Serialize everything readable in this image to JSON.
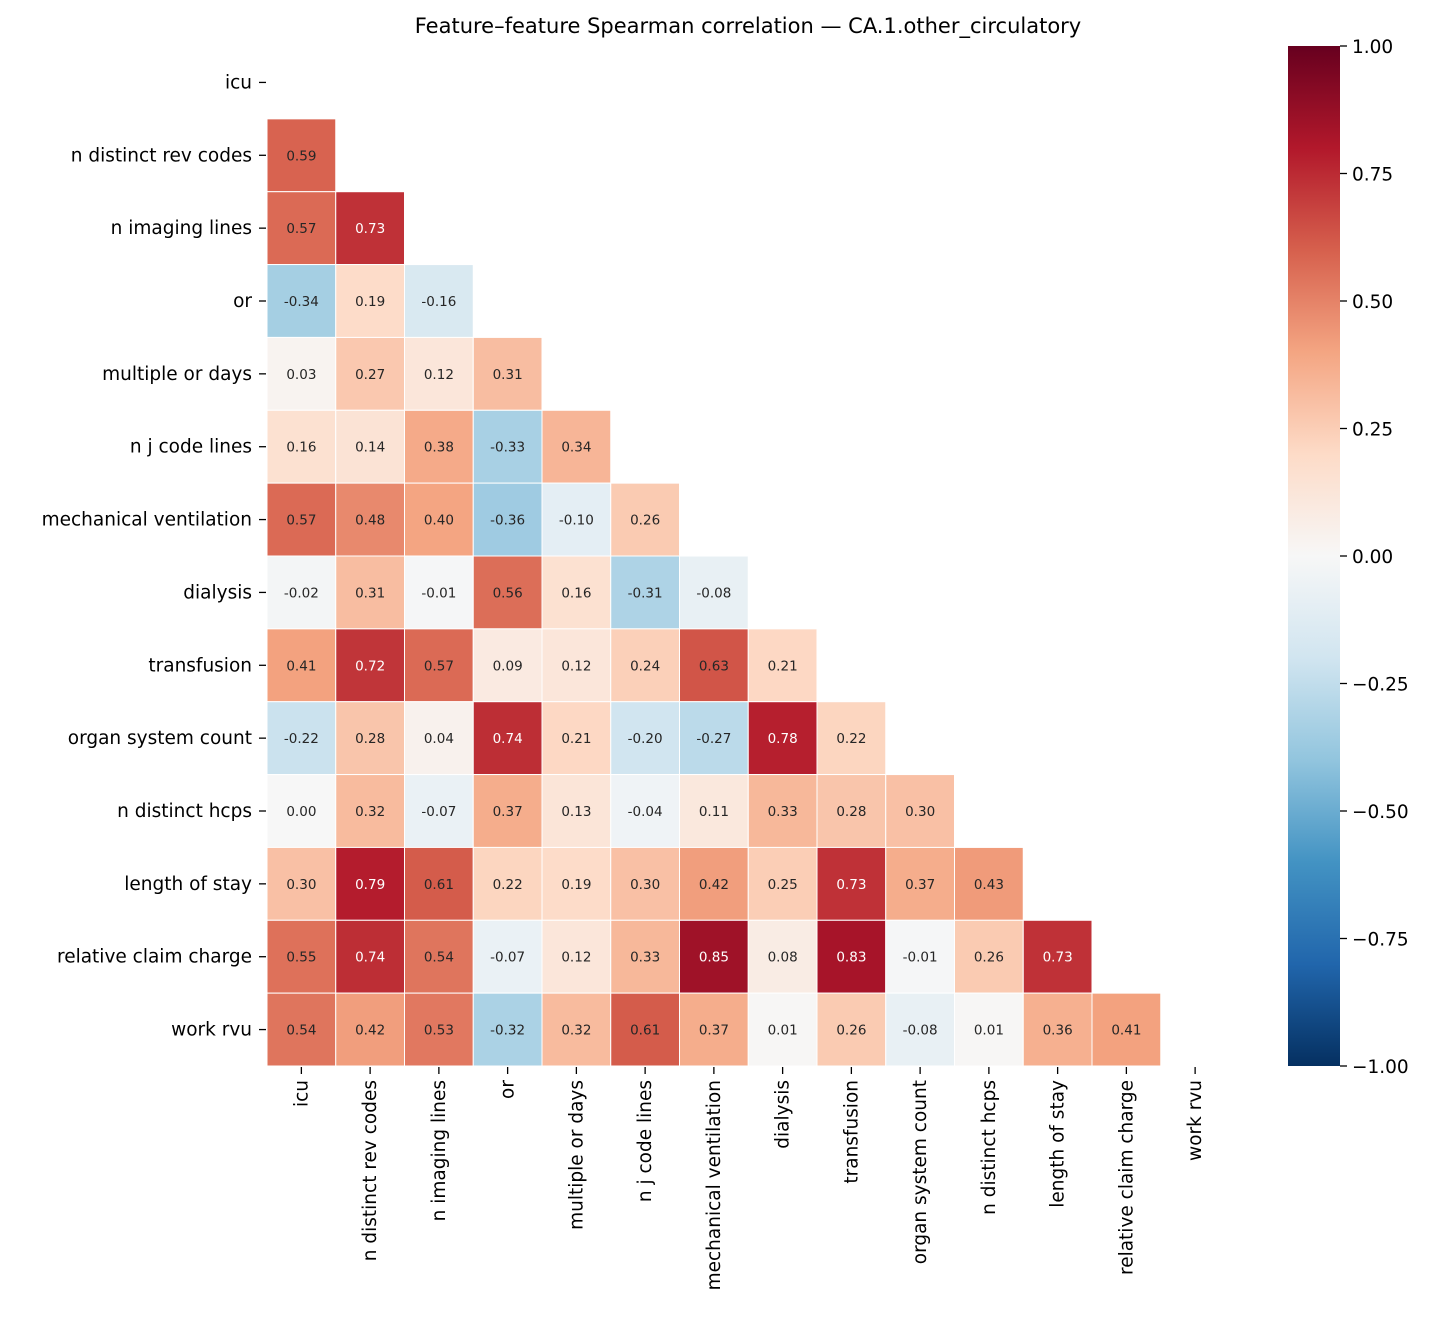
{
  "chart_data": {
    "type": "heatmap",
    "title": "Feature–feature Spearman correlation — CA.1.other_circulatory",
    "labels": [
      "icu",
      "n distinct rev codes",
      "n imaging lines",
      "or",
      "multiple or days",
      "n j code lines",
      "mechanical ventilation",
      "dialysis",
      "transfusion",
      "organ system count",
      "n distinct hcps",
      "length of stay",
      "relative claim charge",
      "work rvu"
    ],
    "lower_triangle": [
      [],
      [
        0.59
      ],
      [
        0.57,
        0.73
      ],
      [
        -0.34,
        0.19,
        -0.16
      ],
      [
        0.03,
        0.27,
        0.12,
        0.31
      ],
      [
        0.16,
        0.14,
        0.38,
        -0.33,
        0.34
      ],
      [
        0.57,
        0.48,
        0.4,
        -0.36,
        -0.1,
        0.26
      ],
      [
        -0.02,
        0.31,
        -0.01,
        0.56,
        0.16,
        -0.31,
        -0.08
      ],
      [
        0.41,
        0.72,
        0.57,
        0.09,
        0.12,
        0.24,
        0.63,
        0.21
      ],
      [
        -0.22,
        0.28,
        0.04,
        0.74,
        0.21,
        -0.2,
        -0.27,
        0.78,
        0.22
      ],
      [
        0.0,
        0.32,
        -0.07,
        0.37,
        0.13,
        -0.04,
        0.11,
        0.33,
        0.28,
        0.3
      ],
      [
        0.3,
        0.79,
        0.61,
        0.22,
        0.19,
        0.3,
        0.42,
        0.25,
        0.73,
        0.37,
        0.43
      ],
      [
        0.55,
        0.74,
        0.54,
        -0.07,
        0.12,
        0.33,
        0.85,
        0.08,
        0.83,
        -0.01,
        0.26,
        0.73
      ],
      [
        0.54,
        0.42,
        0.53,
        -0.32,
        0.32,
        0.61,
        0.37,
        0.01,
        0.26,
        -0.08,
        0.01,
        0.36,
        0.41
      ]
    ],
    "colormap": "RdBu_r",
    "vmin": -1,
    "vmax": 1,
    "colorbar_ticks": [
      "1.00",
      "0.75",
      "0.50",
      "0.25",
      "0.00",
      "−0.25",
      "−0.50",
      "−0.75",
      "−1.00"
    ],
    "colorbar_tick_values": [
      1,
      0.75,
      0.5,
      0.25,
      0,
      -0.25,
      -0.5,
      -0.75,
      -1
    ],
    "mask": "upper triangle incl. diagonal"
  }
}
